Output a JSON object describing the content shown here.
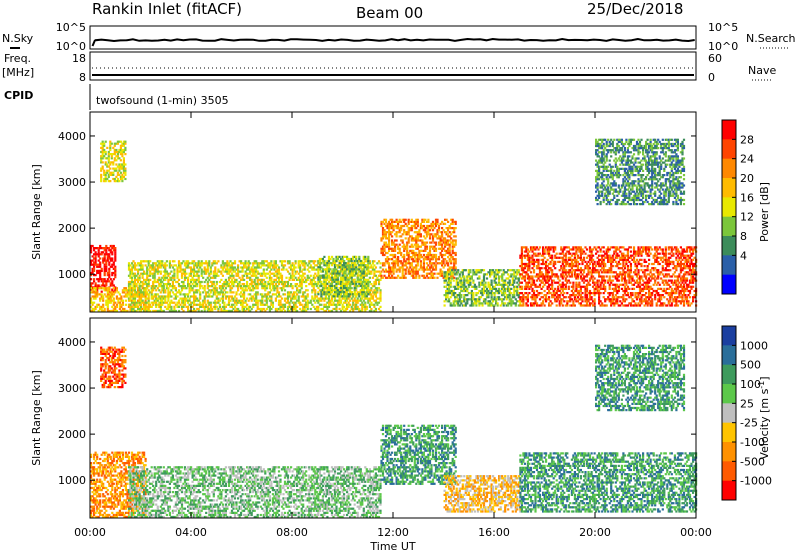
{
  "header": {
    "station": "Rankin Inlet (fitACF)",
    "beam": "Beam 00",
    "date": "25/Dec/2018"
  },
  "top_panels": {
    "nsky_label": "N.Sky",
    "nsky_ticks": [
      "10^5",
      "10^0"
    ],
    "nsearch_label": "N.Search",
    "nsearch_ticks": [
      "10^5",
      "10^0"
    ],
    "freq_label_1": "Freq.",
    "freq_label_2": "[MHz]",
    "freq_ticks": [
      "18",
      "8"
    ],
    "nave_label": "Nave",
    "nave_ticks": [
      "60",
      "0"
    ],
    "cpid_label": "CPID",
    "cpid_text": "twofsound (1-min) 3505"
  },
  "chart_data": [
    {
      "type": "heatmap",
      "name": "power",
      "ylabel": "Slant Range [km]",
      "ylim": [
        180,
        4520
      ],
      "yticks": [
        1000,
        2000,
        3000,
        4000
      ],
      "colorbar_label": "Power [dB]",
      "colorbar_ticks": [
        "28",
        "24",
        "20",
        "16",
        "12",
        "8",
        "4"
      ],
      "colorbar_colors": [
        "#ff0000",
        "#ff4400",
        "#ff8800",
        "#ffbb00",
        "#e8e800",
        "#7bc63a",
        "#3c8c5a",
        "#2a5fa8",
        "#0000ff"
      ],
      "regions": [
        {
          "t": [
            0.0,
            1.0
          ],
          "r": [
            600,
            1600
          ],
          "level": 8
        },
        {
          "t": [
            0.0,
            2.2
          ],
          "r": [
            180,
            700
          ],
          "level": 5
        },
        {
          "t": [
            0.4,
            1.4
          ],
          "r": [
            3000,
            3900
          ],
          "level": 4
        },
        {
          "t": [
            1.5,
            11.5
          ],
          "r": [
            180,
            1300
          ],
          "level": 4
        },
        {
          "t": [
            9.0,
            11.0
          ],
          "r": [
            500,
            1400
          ],
          "level": 3
        },
        {
          "t": [
            11.5,
            14.5
          ],
          "r": [
            900,
            2200
          ],
          "level": 6
        },
        {
          "t": [
            14.0,
            17.0
          ],
          "r": [
            300,
            1100
          ],
          "level": 3
        },
        {
          "t": [
            17.0,
            24.0
          ],
          "r": [
            300,
            1600
          ],
          "level": 7
        },
        {
          "t": [
            20.0,
            23.5
          ],
          "r": [
            2500,
            3900
          ],
          "level": 2
        }
      ]
    },
    {
      "type": "heatmap",
      "name": "velocity",
      "ylabel": "Slant Range [km]",
      "xlabel": "Time UT",
      "xticks": [
        "00:00",
        "04:00",
        "08:00",
        "12:00",
        "16:00",
        "20:00",
        "00:00"
      ],
      "ylim": [
        180,
        4520
      ],
      "yticks": [
        1000,
        2000,
        3000,
        4000
      ],
      "colorbar_label": "Velocity [m s^-1]",
      "colorbar_ticks": [
        "1000",
        "500",
        "100",
        "25",
        "-25",
        "-100",
        "-500",
        "-1000"
      ],
      "colorbar_colors": [
        "#1b3fa0",
        "#2a6e9a",
        "#3e9b5d",
        "#5cc84a",
        "#bfbfbf",
        "#ffc400",
        "#ff9100",
        "#ff5a00",
        "#ff0000"
      ],
      "regions": [
        {
          "t": [
            0.0,
            2.2
          ],
          "r": [
            180,
            1600
          ],
          "level": 2
        },
        {
          "t": [
            0.4,
            1.4
          ],
          "r": [
            3000,
            3900
          ],
          "level": 1
        },
        {
          "t": [
            1.5,
            11.5
          ],
          "r": [
            180,
            1300
          ],
          "level": 5
        },
        {
          "t": [
            11.5,
            14.5
          ],
          "r": [
            900,
            2200
          ],
          "level": 6
        },
        {
          "t": [
            14.0,
            17.0
          ],
          "r": [
            300,
            1100
          ],
          "level": 3
        },
        {
          "t": [
            17.0,
            24.0
          ],
          "r": [
            300,
            1600
          ],
          "level": 6
        },
        {
          "t": [
            20.0,
            23.5
          ],
          "r": [
            2500,
            3900
          ],
          "level": 6
        }
      ]
    }
  ]
}
